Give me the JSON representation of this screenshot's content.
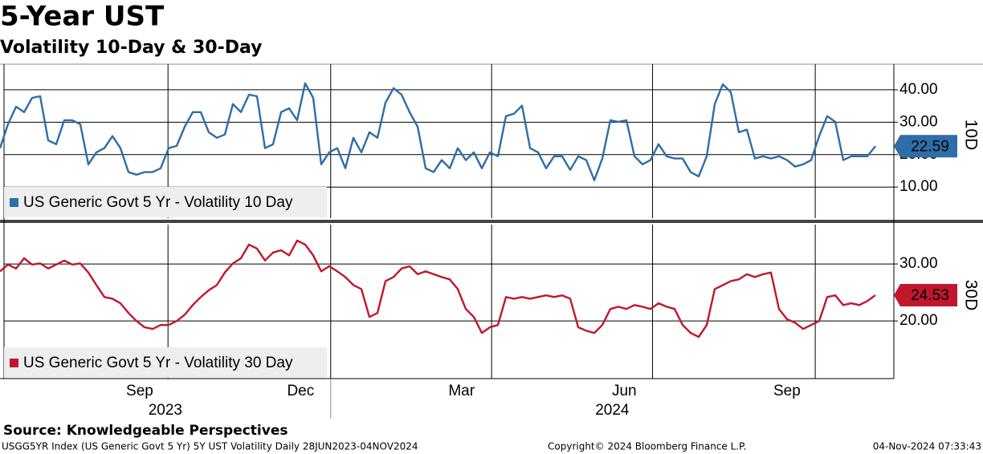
{
  "title": "5-Year UST",
  "subtitle": "Volatility 10-Day & 30-Day",
  "source": "Source: Knowledgeable Perspectives",
  "footer": {
    "left": "USGG5YR Index (US Generic Govt 5 Yr) 5Y UST Volatility  Daily 28JUN2023-04NOV2024",
    "center": "Copyright© 2024 Bloomberg Finance L.P.",
    "right": "04-Nov-2024 07:33:43"
  },
  "x_axis": {
    "xlim": [
      "2023-06-28",
      "2024-11-04"
    ],
    "xticks": [
      {
        "value": "2023-09",
        "label": "Sep"
      },
      {
        "value": "2023-12",
        "label": "Dec"
      },
      {
        "value": "2024-03",
        "label": "Mar"
      },
      {
        "value": "2024-06",
        "label": "Jun"
      },
      {
        "value": "2024-09",
        "label": "Sep"
      }
    ],
    "years": [
      "2023",
      "2024"
    ]
  },
  "chart_data": [
    {
      "type": "line",
      "axis_label": "10D",
      "ylim": [
        0.4,
        47.9
      ],
      "yticks": [
        {
          "value": 10,
          "label": "10.00"
        },
        {
          "value": 20,
          "label": "20.00"
        },
        {
          "value": 30,
          "label": "30.00"
        },
        {
          "value": 40,
          "label": "40.00"
        }
      ],
      "grid": true,
      "series": [
        {
          "name": "US Generic Govt 5 Yr - Volatility 10 Day",
          "color": "#2e6da8",
          "values": [
            22.0,
            29.4,
            34.8,
            33.1,
            37.5,
            38.0,
            24.4,
            23.2,
            30.6,
            30.6,
            29.4,
            17.0,
            20.7,
            22.0,
            25.7,
            22.0,
            14.6,
            13.8,
            14.6,
            14.6,
            15.8,
            22.0,
            22.7,
            28.6,
            33.1,
            33.1,
            26.9,
            25.2,
            26.2,
            35.6,
            33.1,
            38.5,
            38.0,
            22.0,
            23.2,
            33.1,
            34.3,
            30.6,
            42.0,
            37.5,
            17.0,
            20.7,
            22.0,
            15.8,
            25.2,
            20.7,
            26.9,
            25.2,
            36.0,
            40.5,
            38.5,
            33.1,
            28.6,
            15.8,
            14.6,
            18.3,
            15.8,
            22.0,
            18.3,
            20.7,
            15.8,
            20.7,
            19.5,
            31.9,
            32.6,
            35.1,
            22.0,
            20.7,
            15.8,
            19.5,
            19.5,
            15.3,
            19.5,
            18.3,
            12.1,
            18.8,
            30.6,
            30.1,
            30.6,
            19.5,
            17.0,
            18.3,
            23.2,
            19.5,
            18.8,
            18.8,
            14.6,
            13.3,
            19.5,
            35.6,
            41.7,
            39.3,
            26.9,
            27.7,
            18.8,
            19.5,
            18.8,
            19.5,
            18.3,
            16.3,
            17.0,
            18.3,
            25.7,
            31.9,
            30.1,
            18.3,
            19.5,
            19.5,
            19.5,
            22.59
          ]
        }
      ]
    },
    {
      "type": "line",
      "axis_label": "30D",
      "ylim": [
        9.9,
        36.9
      ],
      "yticks": [
        {
          "value": 20,
          "label": "20.00"
        },
        {
          "value": 30,
          "label": "30.00"
        }
      ],
      "grid": true,
      "series": [
        {
          "name": "US Generic Govt 5 Yr - Volatility 30 Day",
          "color": "#c0172d",
          "values": [
            28.7,
            29.9,
            29.2,
            31.0,
            29.9,
            30.1,
            29.2,
            29.9,
            30.6,
            29.9,
            30.1,
            28.5,
            26.3,
            24.2,
            23.9,
            23.1,
            21.4,
            20.0,
            18.9,
            18.6,
            19.3,
            19.3,
            20.0,
            21.1,
            22.8,
            24.2,
            25.4,
            26.3,
            28.5,
            30.1,
            31.0,
            33.4,
            32.7,
            30.6,
            32.0,
            32.4,
            31.5,
            34.1,
            33.4,
            31.5,
            28.7,
            29.6,
            28.7,
            27.7,
            26.3,
            25.6,
            20.7,
            21.4,
            27.0,
            27.7,
            29.2,
            29.6,
            28.2,
            28.7,
            28.2,
            27.7,
            27.3,
            25.6,
            22.1,
            20.7,
            17.9,
            18.9,
            19.3,
            24.2,
            23.9,
            24.2,
            23.9,
            24.2,
            24.5,
            24.2,
            24.5,
            23.9,
            18.9,
            18.3,
            17.9,
            19.3,
            22.1,
            22.5,
            22.1,
            22.8,
            22.5,
            22.1,
            23.1,
            22.5,
            22.1,
            19.3,
            17.9,
            17.2,
            19.3,
            25.6,
            26.3,
            27.0,
            27.3,
            28.2,
            27.7,
            28.2,
            28.5,
            22.1,
            20.3,
            19.7,
            18.6,
            19.3,
            20.0,
            24.2,
            24.5,
            22.8,
            23.1,
            22.8,
            23.5,
            24.53
          ]
        }
      ]
    }
  ]
}
